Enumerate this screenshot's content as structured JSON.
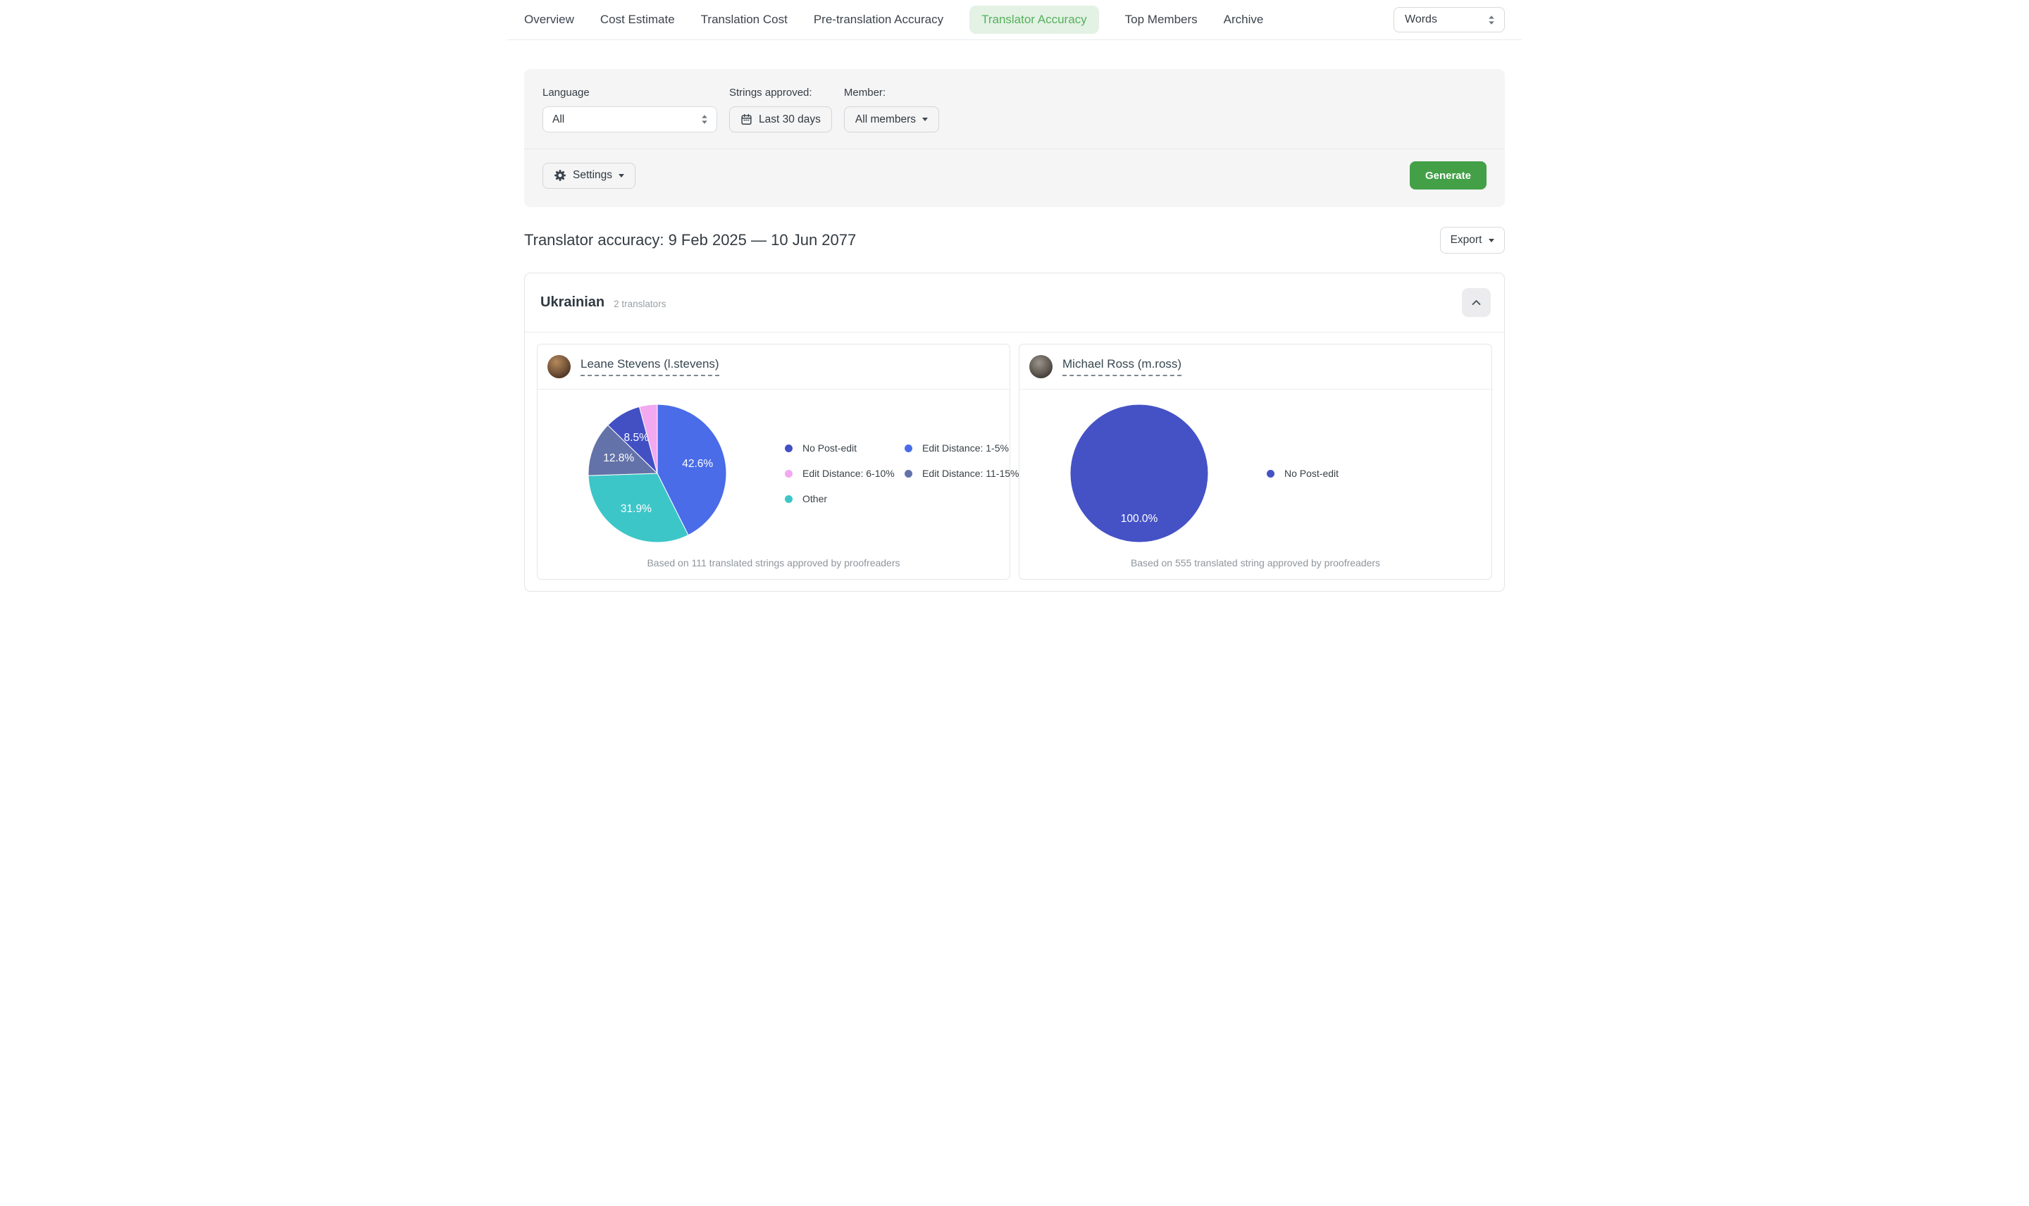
{
  "nav": {
    "tabs": [
      {
        "label": "Overview",
        "active": false
      },
      {
        "label": "Cost Estimate",
        "active": false
      },
      {
        "label": "Translation Cost",
        "active": false
      },
      {
        "label": "Pre-translation Accuracy",
        "active": false
      },
      {
        "label": "Translator Accuracy",
        "active": true
      },
      {
        "label": "Top Members",
        "active": false
      },
      {
        "label": "Archive",
        "active": false
      }
    ],
    "unit_select_value": "Words"
  },
  "filters": {
    "language_label": "Language",
    "language_value": "All",
    "strings_approved_label": "Strings approved:",
    "date_range_value": "Last 30 days",
    "member_label": "Member:",
    "member_value": "All members",
    "settings_label": "Settings",
    "generate_label": "Generate"
  },
  "report": {
    "title": "Translator accuracy: 9 Feb 2025 — 10 Jun 2077",
    "export_label": "Export"
  },
  "language_section": {
    "name": "Ukrainian",
    "translators_count": "2 translators"
  },
  "colors": {
    "accent_green": "#43a047",
    "active_tab_text": "#55b05c",
    "active_tab_bg": "#e3f2e4"
  },
  "chart_data": [
    {
      "type": "pie",
      "translator": "Leane Stevens (l.stevens)",
      "slices": [
        {
          "name": "No Post-edit",
          "value": 8.5,
          "label": "8.5%",
          "color": "#4250c4"
        },
        {
          "name": "Edit Distance: 1-5%",
          "value": 42.6,
          "label": "42.6%",
          "color": "#4a6ce8"
        },
        {
          "name": "Edit Distance: 6-10%",
          "value": 4.2,
          "label": "",
          "color": "#f2a9ef"
        },
        {
          "name": "Edit Distance: 11-15%",
          "value": 12.8,
          "label": "12.8%",
          "color": "#6372a8"
        },
        {
          "name": "Other",
          "value": 31.9,
          "label": "31.9%",
          "color": "#3dc6c8"
        }
      ],
      "footnote": "Based on 111 translated strings approved by proofreaders",
      "legend_position": "right",
      "slice_order": "descending-clockwise-from-top"
    },
    {
      "type": "pie",
      "translator": "Michael Ross (m.ross)",
      "slices": [
        {
          "name": "No Post-edit",
          "value": 100.0,
          "label": "100.0%",
          "color": "#4552c6"
        }
      ],
      "footnote": "Based on 555 translated string approved by proofreaders",
      "legend_position": "right"
    }
  ]
}
